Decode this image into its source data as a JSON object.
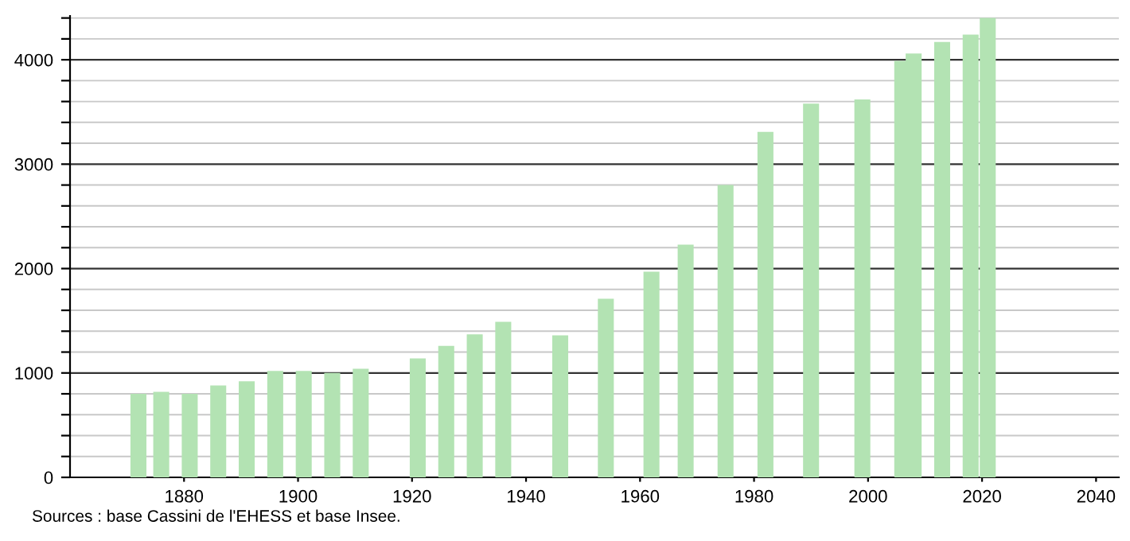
{
  "chart_data": {
    "type": "bar",
    "x": [
      1872,
      1876,
      1881,
      1886,
      1891,
      1896,
      1901,
      1906,
      1911,
      1921,
      1926,
      1931,
      1936,
      1946,
      1954,
      1962,
      1968,
      1975,
      1982,
      1990,
      1999,
      2006,
      2008,
      2013,
      2018,
      2021
    ],
    "values": [
      800,
      820,
      800,
      880,
      920,
      1020,
      1020,
      1000,
      1040,
      1140,
      1260,
      1370,
      1490,
      1360,
      1710,
      1970,
      2230,
      2800,
      3310,
      3580,
      3620,
      3990,
      4060,
      4170,
      4240,
      4400
    ],
    "color": "#b3e3b3",
    "xlim": [
      1860,
      2044
    ],
    "xticks": [
      1880,
      1900,
      1920,
      1940,
      1960,
      1980,
      2000,
      2020,
      2040
    ],
    "ylim": [
      0,
      4420
    ],
    "yticks": [
      0,
      {
        "value": 200,
        "label": null
      },
      {
        "value": 400,
        "label": null
      },
      {
        "value": 600,
        "label": null
      },
      {
        "value": 800,
        "label": null
      },
      1000,
      {
        "value": 1200,
        "label": null
      },
      {
        "value": 1400,
        "label": null
      },
      {
        "value": 1600,
        "label": null
      },
      {
        "value": 1800,
        "label": null
      },
      2000,
      {
        "value": 2200,
        "label": null
      },
      {
        "value": 2400,
        "label": null
      },
      {
        "value": 2600,
        "label": null
      },
      {
        "value": 2800,
        "label": null
      },
      3000,
      {
        "value": 3200,
        "label": null
      },
      {
        "value": 3400,
        "label": null
      },
      {
        "value": 3600,
        "label": null
      },
      {
        "value": 3800,
        "label": null
      },
      4000,
      {
        "value": 4200,
        "label": null
      },
      {
        "value": 4400,
        "label": null
      }
    ],
    "grid": "y",
    "annotations": [
      "Sources : base Cassini de l'EHESS et base Insee."
    ]
  }
}
